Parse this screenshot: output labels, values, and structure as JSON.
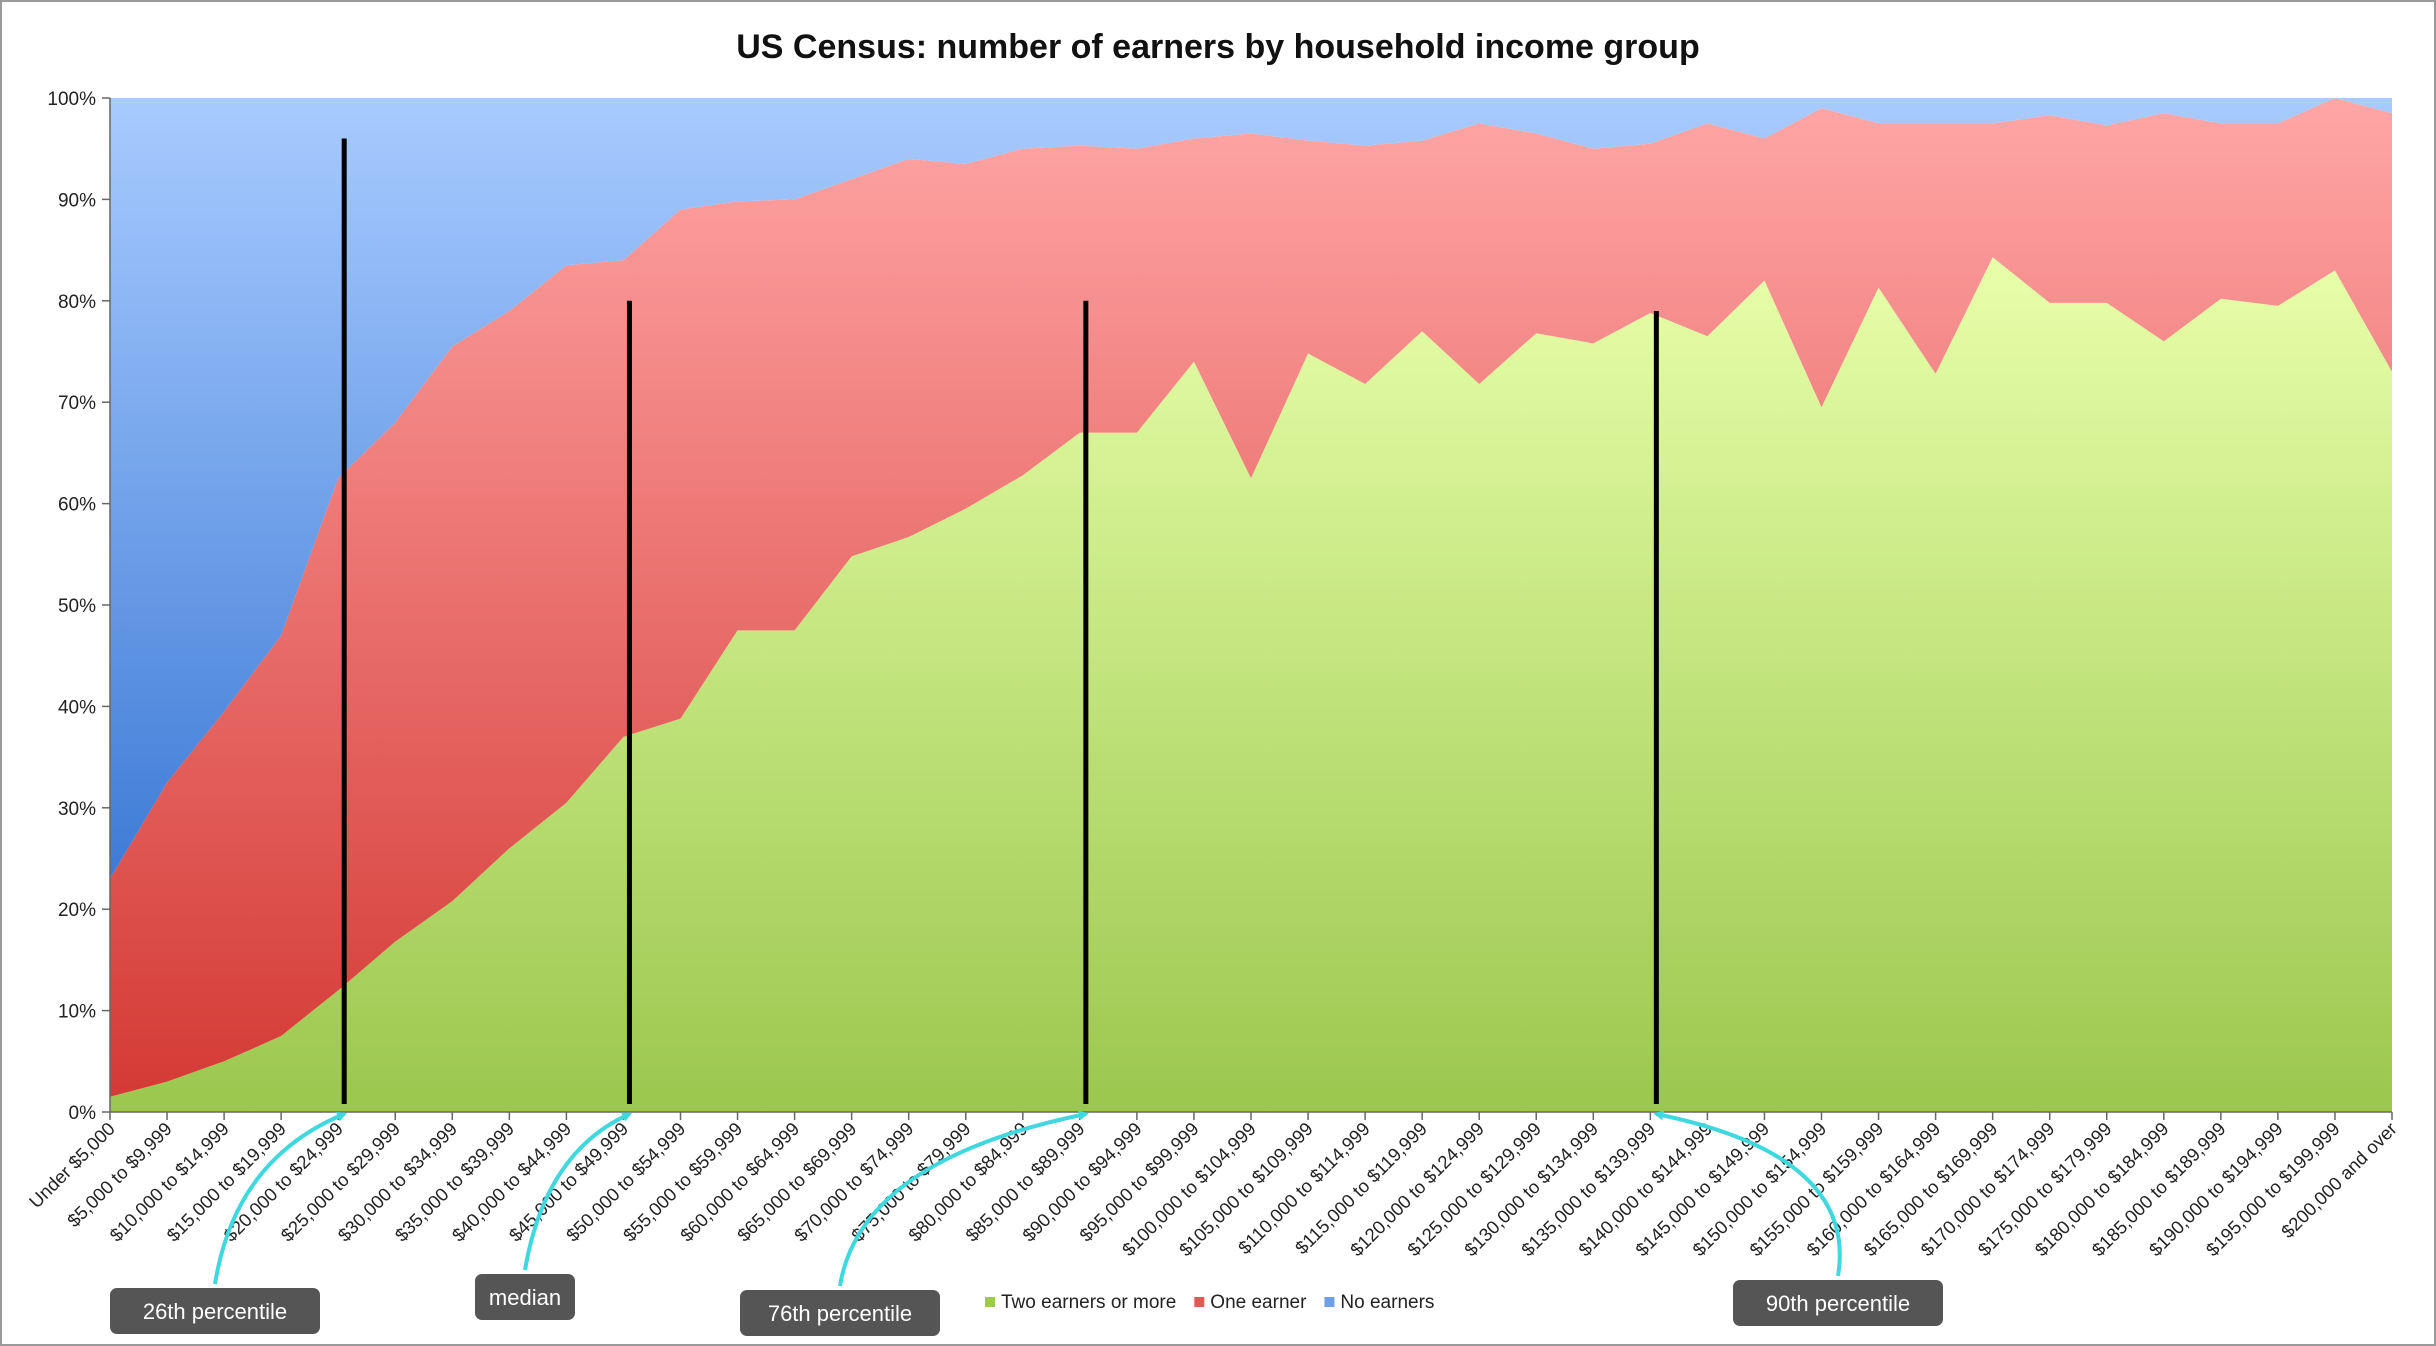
{
  "chart_data": {
    "type": "area",
    "stacked": "percent",
    "title": "US Census: number of earners by household income group",
    "categories": [
      "Under $5,000",
      "$5,000 to $9,999",
      "$10,000 to $14,999",
      "$15,000 to $19,999",
      "$20,000 to $24,999",
      "$25,000 to $29,999",
      "$30,000 to $34,999",
      "$35,000 to $39,999",
      "$40,000 to $44,999",
      "$45,000 to $49,999",
      "$50,000 to $54,999",
      "$55,000 to $59,999",
      "$60,000 to $64,999",
      "$65,000 to $69,999",
      "$70,000 to $74,999",
      "$75,000 to $79,999",
      "$80,000 to $84,999",
      "$85,000 to $89,999",
      "$90,000 to $94,999",
      "$95,000 to $99,999",
      "$100,000 to $104,999",
      "$105,000 to $109,999",
      "$110,000 to $114,999",
      "$115,000 to $119,999",
      "$120,000 to $124,999",
      "$125,000 to $129,999",
      "$130,000 to $134,999",
      "$135,000 to $139,999",
      "$140,000 to $144,999",
      "$145,000 to $149,999",
      "$150,000 to $154,999",
      "$155,000 to $159,999",
      "$160,000 to $164,999",
      "$165,000 to $169,999",
      "$170,000 to $174,999",
      "$175,000 to $179,999",
      "$180,000 to $184,999",
      "$185,000 to $189,999",
      "$190,000 to $194,999",
      "$195,000 to $199,999",
      "$200,000 and over"
    ],
    "series": [
      {
        "name": "Two earners or more",
        "color": "#9cc94f",
        "values": [
          1.5,
          3,
          5,
          7.5,
          12,
          16.8,
          20.8,
          26,
          30.5,
          37,
          38.8,
          47.5,
          47.5,
          54.8,
          56.7,
          59.5,
          62.8,
          67,
          67,
          74,
          62.5,
          74.8,
          71.8,
          77,
          71.8,
          76.8,
          75.8,
          78.8,
          76.5,
          82,
          69.5,
          81.3,
          72.8,
          84.3,
          79.8,
          79.8,
          76,
          80.2,
          79.5,
          83,
          73
        ]
      },
      {
        "name": "One earner",
        "color": "#e05a55",
        "values": [
          21.5,
          29.5,
          34.5,
          39.5,
          50.5,
          51.2,
          54.7,
          53,
          53,
          47,
          50.2,
          42.3,
          42.5,
          37.2,
          37.3,
          34,
          32.2,
          28.3,
          28,
          22,
          34,
          21,
          23.5,
          18.8,
          25.7,
          19.7,
          19.2,
          16.7,
          21,
          14,
          29.5,
          16.2,
          24.7,
          13.2,
          18.5,
          17.5,
          22.5,
          17.3,
          18,
          17,
          25.5
        ]
      },
      {
        "name": "No earners",
        "color": "#6f9fe6",
        "values": [
          77,
          67.5,
          60.5,
          53,
          37.5,
          32,
          24.5,
          21,
          16.5,
          16,
          11,
          10.2,
          10,
          8,
          6,
          6.5,
          5,
          4.7,
          5,
          4,
          3.5,
          4.2,
          4.7,
          4.2,
          2.5,
          3.5,
          5,
          4.5,
          2.5,
          4,
          1,
          2.5,
          2.5,
          2.5,
          1.7,
          2.7,
          1.5,
          2.5,
          2.5,
          0,
          1.5
        ]
      }
    ],
    "ylim": [
      0,
      100
    ],
    "yticks": [
      "0%",
      "10%",
      "20%",
      "30%",
      "40%",
      "50%",
      "60%",
      "70%",
      "80%",
      "90%",
      "100%"
    ],
    "xlabel": "",
    "ylabel": "",
    "legend_position": "bottom",
    "legend": [
      "Two earners or more",
      "One earner",
      "No earners"
    ],
    "annotations": [
      {
        "label": "26th percentile",
        "category_index": 4
      },
      {
        "label": "median",
        "category_index": 9
      },
      {
        "label": "76th percentile",
        "category_index": 17
      },
      {
        "label": "90th percentile",
        "category_index": 27
      }
    ],
    "marker_line_color": "#000000",
    "arrow_color": "#3fd8df",
    "callout_color": "#555555"
  }
}
